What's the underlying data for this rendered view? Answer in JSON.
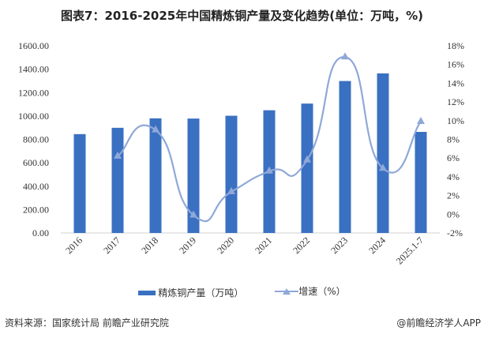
{
  "title": "图表7：2016-2025年中国精炼铜产量及变化趋势(单位：万吨，%)",
  "chart_data": {
    "type": "bar+line",
    "title": "图表7：2016-2025年中国精炼铜产量及变化趋势(单位：万吨，%)",
    "categories": [
      "2016",
      "2017",
      "2018",
      "2019",
      "2020",
      "2021",
      "2022",
      "2023",
      "2024",
      "2025.1-7"
    ],
    "series": [
      {
        "name": "精炼铜产量（万吨）",
        "type": "bar",
        "axis": "left",
        "color": "#3a70c2",
        "values": [
          845,
          899,
          980,
          978,
          1002,
          1049,
          1106,
          1299,
          1364,
          864
        ]
      },
      {
        "name": "增速（%）",
        "type": "line",
        "axis": "right",
        "color": "#8fa8d8",
        "marker": "triangle",
        "smooth": true,
        "values": [
          null,
          6.2,
          9.0,
          -0.1,
          2.4,
          4.6,
          5.8,
          16.8,
          4.9,
          9.9
        ]
      }
    ],
    "left_axis": {
      "range": [
        0,
        1600
      ],
      "ticks": [
        "0.00",
        "200.00",
        "400.00",
        "600.00",
        "800.00",
        "1000.00",
        "1200.00",
        "1400.00",
        "1600.00"
      ]
    },
    "right_axis": {
      "range": [
        -2,
        18
      ],
      "ticks": [
        "-2%",
        "0%",
        "2%",
        "4%",
        "6%",
        "8%",
        "10%",
        "12%",
        "14%",
        "16%",
        "18%"
      ]
    },
    "grid": false,
    "legend": "bottom"
  },
  "legend": {
    "bar": "精炼铜产量（万吨）",
    "line": "增速（%）"
  },
  "footer": {
    "source": "资料来源：国家统计局 前瞻产业研究院",
    "brand": "@前瞻经济学人APP"
  }
}
